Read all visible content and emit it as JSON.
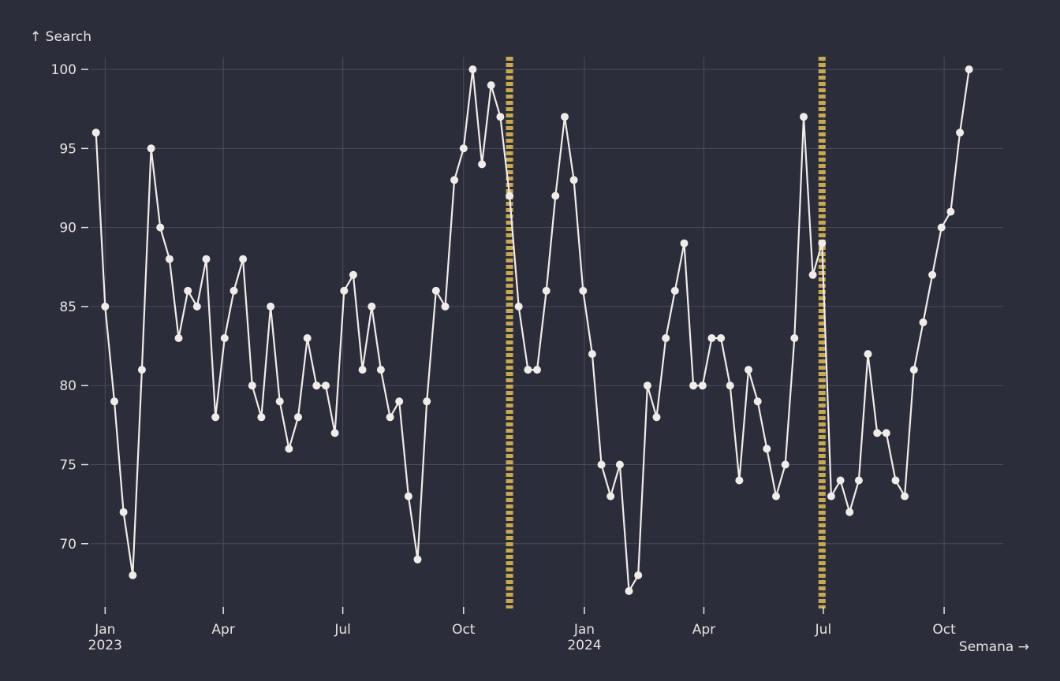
{
  "chart_data": {
    "type": "line",
    "ylabel": "↑ Search",
    "xlabel": "Semana →",
    "ylim": [
      66,
      100.8
    ],
    "y_ticks": [
      70,
      75,
      80,
      85,
      90,
      95,
      100
    ],
    "x_range": [
      "2022-12-21",
      "2024-11-15"
    ],
    "x_ticks": [
      {
        "date": "2023-01-01",
        "label": "Jan",
        "sublabel": "2023"
      },
      {
        "date": "2023-04-01",
        "label": "Apr",
        "sublabel": ""
      },
      {
        "date": "2023-07-01",
        "label": "Jul",
        "sublabel": ""
      },
      {
        "date": "2023-10-01",
        "label": "Oct",
        "sublabel": ""
      },
      {
        "date": "2024-01-01",
        "label": "Jan",
        "sublabel": "2024"
      },
      {
        "date": "2024-04-01",
        "label": "Apr",
        "sublabel": ""
      },
      {
        "date": "2024-07-01",
        "label": "Jul",
        "sublabel": ""
      },
      {
        "date": "2024-10-01",
        "label": "Oct",
        "sublabel": ""
      }
    ],
    "grid": true,
    "line_color": "#f1ece8",
    "marker_color": "#c9a94f",
    "vertical_markers": [
      "2023-11-05",
      "2024-06-30"
    ],
    "x_start": "2022-12-25",
    "x_step_days": 7,
    "values": [
      96,
      85,
      79,
      72,
      68,
      81,
      95,
      90,
      88,
      83,
      86,
      85,
      88,
      78,
      83,
      86,
      88,
      80,
      78,
      85,
      79,
      76,
      78,
      83,
      80,
      80,
      77,
      86,
      87,
      81,
      85,
      81,
      78,
      79,
      73,
      69,
      79,
      86,
      85,
      93,
      95,
      100,
      94,
      99,
      97,
      92,
      85,
      81,
      81,
      86,
      92,
      97,
      93,
      86,
      82,
      75,
      73,
      75,
      67,
      68,
      80,
      78,
      83,
      86,
      89,
      80,
      80,
      83,
      83,
      80,
      74,
      81,
      79,
      76,
      73,
      75,
      83,
      97,
      87,
      89,
      73,
      74,
      72,
      74,
      82,
      77,
      77,
      74,
      73,
      81,
      84,
      87,
      90,
      91,
      96,
      100
    ]
  }
}
